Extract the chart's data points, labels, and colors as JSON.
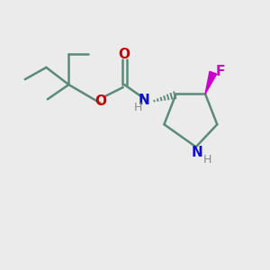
{
  "bg_color": "#ebebeb",
  "bond_color": "#5a8a7a",
  "o_color": "#cc0000",
  "n_color": "#1111cc",
  "f_color": "#cc00cc",
  "h_color": "#888888",
  "line_width": 1.8,
  "fig_size": [
    3.0,
    3.0
  ],
  "dpi": 100,
  "xlim": [
    0,
    10
  ],
  "ylim": [
    0,
    10
  ]
}
